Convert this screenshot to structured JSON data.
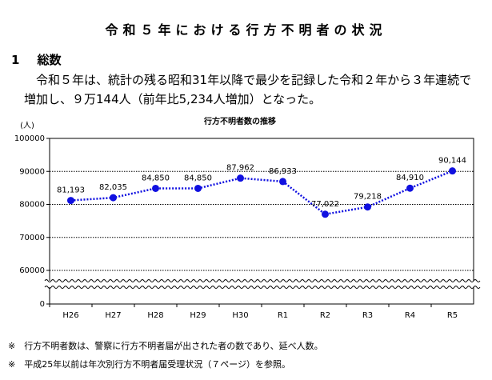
{
  "title": "令和５年における行方不明者の状況",
  "section": {
    "number": "1",
    "heading": "総数"
  },
  "body": "令和５年は、統計の残る昭和31年以降で最少を記録した令和２年から３年連続で増加し、９万144人（前年比5,234人増加）となった。",
  "chart_data": {
    "type": "line",
    "title": "行方不明者数の推移",
    "y_label": "(人)",
    "categories": [
      "H26",
      "H27",
      "H28",
      "H29",
      "H30",
      "R1",
      "R2",
      "R3",
      "R4",
      "R5"
    ],
    "values": [
      81193,
      82035,
      84850,
      84850,
      87962,
      86933,
      77022,
      79218,
      84910,
      90144
    ],
    "value_labels": [
      "81,193",
      "82,035",
      "84,850",
      "84,850",
      "87,962",
      "86,933",
      "77,022",
      "79,218",
      "84,910",
      "90,144"
    ],
    "color": "#1010e0",
    "ylim": [
      0,
      100000
    ],
    "yticks": [
      0,
      60000,
      70000,
      80000,
      90000,
      100000
    ],
    "grid": true,
    "axis_break": true
  },
  "notes": [
    "※　行方不明者数は、警察に行方不明者届が出された者の数であり、延べ人数。",
    "※　平成25年以前は年次別行方不明者届受理状況（７ページ）を参照。"
  ]
}
